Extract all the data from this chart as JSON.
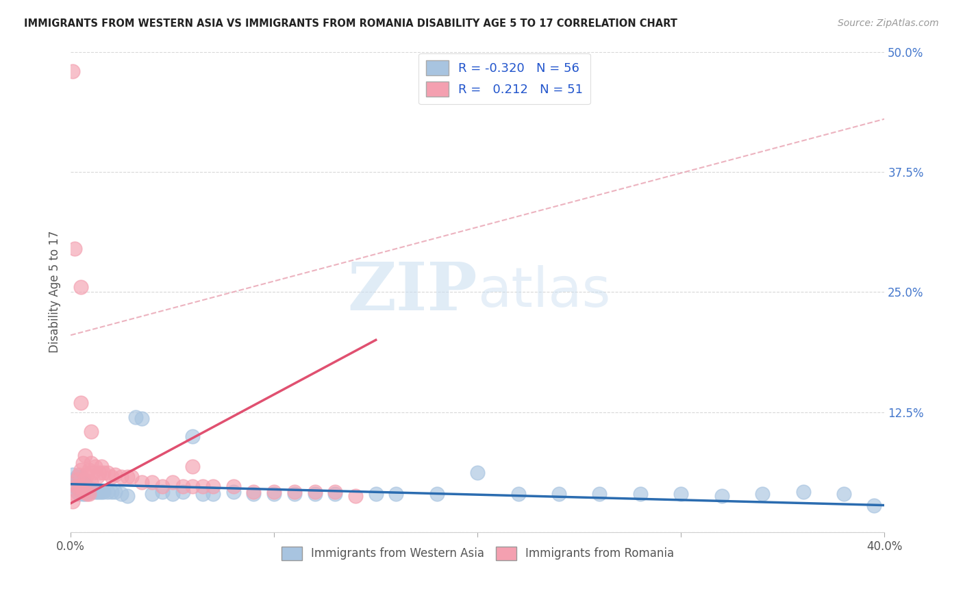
{
  "title": "IMMIGRANTS FROM WESTERN ASIA VS IMMIGRANTS FROM ROMANIA DISABILITY AGE 5 TO 17 CORRELATION CHART",
  "source": "Source: ZipAtlas.com",
  "ylabel": "Disability Age 5 to 17",
  "x_min": 0.0,
  "x_max": 0.4,
  "y_min": 0.0,
  "y_max": 0.5,
  "legend_r_blue": "-0.320",
  "legend_n_blue": "56",
  "legend_r_pink": "0.212",
  "legend_n_pink": "51",
  "blue_color": "#a8c4e0",
  "pink_color": "#f4a0b0",
  "blue_line_color": "#2b6cb0",
  "pink_line_color": "#e05070",
  "dashed_line_color": "#e8a0b0",
  "watermark_color": "#c8ddf0",
  "blue_scatter_x": [
    0.001,
    0.002,
    0.002,
    0.003,
    0.003,
    0.004,
    0.004,
    0.005,
    0.005,
    0.006,
    0.006,
    0.007,
    0.007,
    0.008,
    0.009,
    0.01,
    0.011,
    0.012,
    0.013,
    0.014,
    0.015,
    0.016,
    0.018,
    0.02,
    0.022,
    0.025,
    0.028,
    0.032,
    0.035,
    0.04,
    0.045,
    0.05,
    0.055,
    0.06,
    0.065,
    0.07,
    0.08,
    0.09,
    0.1,
    0.11,
    0.12,
    0.13,
    0.15,
    0.16,
    0.18,
    0.2,
    0.22,
    0.24,
    0.26,
    0.28,
    0.3,
    0.32,
    0.34,
    0.36,
    0.38,
    0.395
  ],
  "blue_scatter_y": [
    0.06,
    0.055,
    0.048,
    0.058,
    0.042,
    0.055,
    0.04,
    0.058,
    0.042,
    0.055,
    0.04,
    0.05,
    0.04,
    0.045,
    0.042,
    0.042,
    0.045,
    0.042,
    0.042,
    0.042,
    0.042,
    0.042,
    0.042,
    0.042,
    0.042,
    0.04,
    0.038,
    0.12,
    0.118,
    0.04,
    0.042,
    0.04,
    0.042,
    0.1,
    0.04,
    0.04,
    0.042,
    0.04,
    0.04,
    0.04,
    0.04,
    0.04,
    0.04,
    0.04,
    0.04,
    0.062,
    0.04,
    0.04,
    0.04,
    0.04,
    0.04,
    0.038,
    0.04,
    0.042,
    0.04,
    0.028
  ],
  "pink_scatter_x": [
    0.001,
    0.001,
    0.002,
    0.002,
    0.003,
    0.003,
    0.004,
    0.004,
    0.005,
    0.005,
    0.005,
    0.006,
    0.006,
    0.007,
    0.007,
    0.008,
    0.008,
    0.009,
    0.009,
    0.01,
    0.01,
    0.011,
    0.012,
    0.013,
    0.014,
    0.015,
    0.016,
    0.018,
    0.02,
    0.022,
    0.025,
    0.028,
    0.03,
    0.035,
    0.04,
    0.045,
    0.05,
    0.055,
    0.06,
    0.065,
    0.07,
    0.08,
    0.09,
    0.1,
    0.11,
    0.12,
    0.13,
    0.14,
    0.005,
    0.01,
    0.06
  ],
  "pink_scatter_y": [
    0.48,
    0.032,
    0.295,
    0.04,
    0.055,
    0.048,
    0.06,
    0.045,
    0.065,
    0.048,
    0.255,
    0.072,
    0.042,
    0.08,
    0.055,
    0.06,
    0.04,
    0.065,
    0.04,
    0.072,
    0.052,
    0.062,
    0.068,
    0.058,
    0.062,
    0.068,
    0.062,
    0.062,
    0.058,
    0.06,
    0.058,
    0.058,
    0.058,
    0.052,
    0.052,
    0.048,
    0.052,
    0.048,
    0.048,
    0.048,
    0.048,
    0.048,
    0.042,
    0.042,
    0.042,
    0.042,
    0.042,
    0.038,
    0.135,
    0.105,
    0.068
  ],
  "blue_line_x": [
    0.0,
    0.4
  ],
  "blue_line_y": [
    0.05,
    0.028
  ],
  "pink_line_x": [
    0.0,
    0.15
  ],
  "pink_line_y": [
    0.03,
    0.2
  ],
  "dashed_line_x": [
    0.0,
    0.4
  ],
  "dashed_line_y": [
    0.205,
    0.43
  ]
}
